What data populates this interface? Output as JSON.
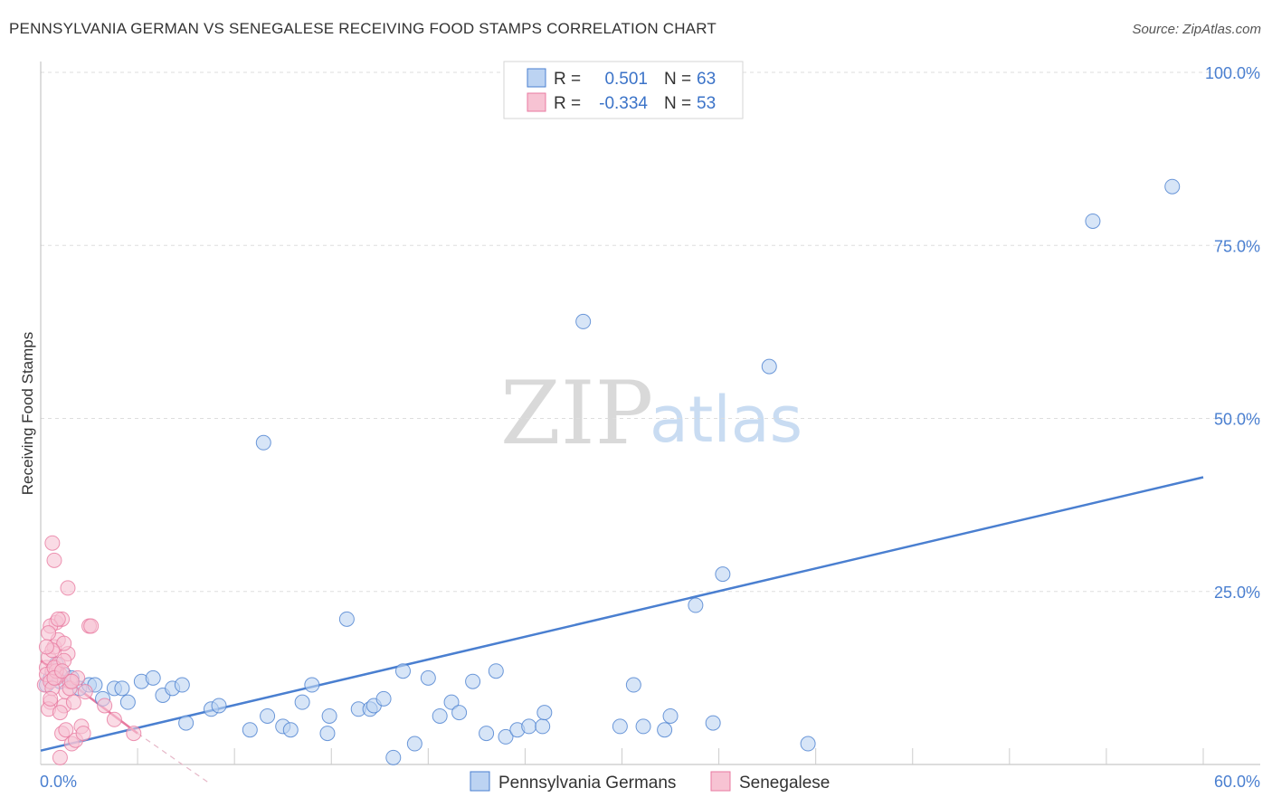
{
  "title": "PENNSYLVANIA GERMAN VS SENEGALESE RECEIVING FOOD STAMPS CORRELATION CHART",
  "source": "Source: ZipAtlas.com",
  "watermark": {
    "zip": "ZIP",
    "atlas": "atlas"
  },
  "colors": {
    "blue": "#4a7fd0",
    "blue_fill": "#bcd3f2",
    "pink": "#e87aa0",
    "pink_fill": "#f7c3d3",
    "grid": "#dddddd"
  },
  "legend": {
    "rows": [
      {
        "r_label": "R =",
        "r_value": "0.501",
        "n_label": "N =",
        "n_value": "63"
      },
      {
        "r_label": "R =",
        "r_value": "-0.334",
        "n_label": "N =",
        "n_value": "53"
      }
    ]
  },
  "chart_data": {
    "type": "scatter",
    "xlabel": "",
    "ylabel": "Receiving Food Stamps",
    "xlim": [
      0,
      60
    ],
    "ylim": [
      0,
      105
    ],
    "x_tick_labels": [
      {
        "value": 0,
        "label": "0.0%"
      },
      {
        "value": 60,
        "label": "60.0%"
      }
    ],
    "y_tick_labels": [
      {
        "value": 25,
        "label": "25.0%"
      },
      {
        "value": 50,
        "label": "50.0%"
      },
      {
        "value": 75,
        "label": "75.0%"
      },
      {
        "value": 100,
        "label": "100.0%"
      }
    ],
    "series": [
      {
        "name": "Pennsylvania Germans",
        "color": "#4a7fd0",
        "trend": {
          "x": [
            0,
            60
          ],
          "y": [
            2.0,
            41.5
          ]
        },
        "points": [
          [
            0.5,
            12.5
          ],
          [
            0.8,
            14.5
          ],
          [
            1.2,
            13.0
          ],
          [
            1.6,
            12.5
          ],
          [
            2.0,
            11.0
          ],
          [
            2.5,
            11.5
          ],
          [
            2.8,
            11.5
          ],
          [
            3.2,
            9.5
          ],
          [
            3.8,
            11.0
          ],
          [
            4.2,
            11.0
          ],
          [
            4.5,
            9.0
          ],
          [
            5.2,
            12.0
          ],
          [
            5.8,
            12.5
          ],
          [
            6.3,
            10.0
          ],
          [
            6.8,
            11.0
          ],
          [
            7.3,
            11.5
          ],
          [
            7.5,
            6.0
          ],
          [
            8.8,
            8.0
          ],
          [
            9.2,
            8.5
          ],
          [
            10.8,
            5.0
          ],
          [
            11.5,
            46.5
          ],
          [
            11.7,
            7.0
          ],
          [
            12.5,
            5.5
          ],
          [
            12.9,
            5.0
          ],
          [
            13.5,
            9.0
          ],
          [
            14.0,
            11.5
          ],
          [
            14.8,
            4.5
          ],
          [
            14.9,
            7.0
          ],
          [
            15.8,
            21.0
          ],
          [
            16.4,
            8.0
          ],
          [
            17.0,
            8.0
          ],
          [
            17.2,
            8.5
          ],
          [
            17.7,
            9.5
          ],
          [
            18.2,
            1.0
          ],
          [
            18.7,
            13.5
          ],
          [
            19.3,
            3.0
          ],
          [
            20.0,
            12.5
          ],
          [
            20.6,
            7.0
          ],
          [
            21.2,
            9.0
          ],
          [
            21.6,
            7.5
          ],
          [
            22.3,
            12.0
          ],
          [
            23.0,
            4.5
          ],
          [
            23.5,
            13.5
          ],
          [
            24.0,
            4.0
          ],
          [
            24.6,
            5.0
          ],
          [
            25.2,
            5.5
          ],
          [
            25.9,
            5.5
          ],
          [
            26.0,
            7.5
          ],
          [
            28.0,
            64.0
          ],
          [
            29.9,
            5.5
          ],
          [
            30.6,
            11.5
          ],
          [
            31.1,
            5.5
          ],
          [
            32.2,
            5.0
          ],
          [
            32.5,
            7.0
          ],
          [
            33.8,
            23.0
          ],
          [
            34.7,
            6.0
          ],
          [
            35.2,
            27.5
          ],
          [
            37.6,
            57.5
          ],
          [
            39.6,
            3.0
          ],
          [
            54.3,
            78.5
          ],
          [
            58.4,
            83.5
          ],
          [
            0.3,
            11.5
          ],
          [
            1.0,
            12.0
          ]
        ]
      },
      {
        "name": "Senegalese",
        "color": "#e87aa0",
        "trend": {
          "x": [
            0,
            5.0
          ],
          "y": [
            15.0,
            4.5
          ]
        },
        "trend_ext": {
          "x": [
            5.0,
            8.6
          ],
          "y": [
            4.5,
            -2.5
          ]
        },
        "points": [
          [
            0.2,
            11.5
          ],
          [
            0.3,
            14.0
          ],
          [
            0.4,
            15.5
          ],
          [
            0.5,
            9.0
          ],
          [
            0.6,
            13.5
          ],
          [
            0.7,
            17.0
          ],
          [
            0.8,
            20.5
          ],
          [
            0.9,
            18.0
          ],
          [
            1.0,
            13.0
          ],
          [
            1.1,
            21.0
          ],
          [
            1.2,
            8.5
          ],
          [
            1.3,
            10.5
          ],
          [
            1.4,
            16.0
          ],
          [
            1.5,
            12.0
          ],
          [
            0.4,
            8.0
          ],
          [
            0.5,
            20.0
          ],
          [
            0.6,
            32.0
          ],
          [
            0.7,
            29.5
          ],
          [
            0.8,
            12.5
          ],
          [
            0.9,
            14.5
          ],
          [
            1.0,
            7.5
          ],
          [
            1.1,
            4.5
          ],
          [
            1.2,
            17.5
          ],
          [
            1.3,
            5.0
          ],
          [
            1.4,
            25.5
          ],
          [
            1.5,
            11.0
          ],
          [
            1.6,
            3.0
          ],
          [
            1.7,
            9.0
          ],
          [
            1.8,
            3.5
          ],
          [
            1.9,
            12.5
          ],
          [
            2.1,
            5.5
          ],
          [
            2.2,
            4.5
          ],
          [
            2.3,
            10.5
          ],
          [
            2.5,
            20.0
          ],
          [
            2.6,
            20.0
          ],
          [
            3.3,
            8.5
          ],
          [
            3.8,
            6.5
          ],
          [
            4.8,
            4.5
          ],
          [
            0.3,
            13.0
          ],
          [
            0.5,
            12.0
          ],
          [
            0.6,
            16.5
          ],
          [
            0.8,
            13.5
          ],
          [
            0.9,
            21.0
          ],
          [
            1.0,
            1.0
          ],
          [
            0.4,
            19.0
          ],
          [
            0.6,
            11.0
          ],
          [
            0.7,
            14.0
          ],
          [
            1.2,
            15.0
          ],
          [
            0.3,
            17.0
          ],
          [
            0.5,
            9.5
          ],
          [
            0.7,
            12.5
          ],
          [
            1.1,
            13.5
          ],
          [
            1.6,
            12.0
          ]
        ]
      }
    ]
  },
  "bottom_legend": [
    {
      "label": "Pennsylvania Germans"
    },
    {
      "label": "Senegalese"
    }
  ]
}
